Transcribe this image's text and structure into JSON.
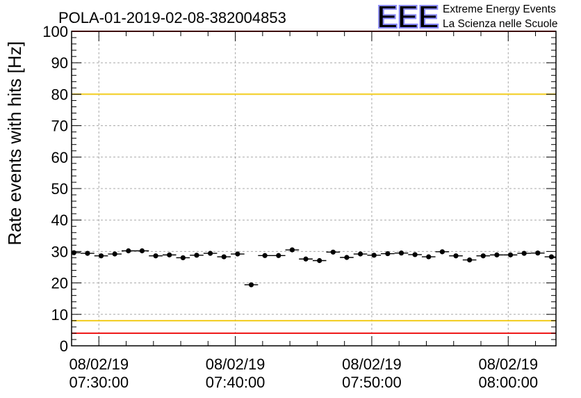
{
  "chart_data": {
    "type": "scatter",
    "title": "POLA-01-2019-02-08-382004853",
    "ylabel": "Rate events with hits [Hz]",
    "xlabel": "",
    "ylim": [
      0,
      100
    ],
    "grid": true,
    "yticks": [
      0,
      10,
      20,
      30,
      40,
      50,
      60,
      70,
      80,
      90,
      100
    ],
    "xticks": [
      {
        "t": "07:30:00",
        "date": "08/02/19",
        "time": "07:30:00"
      },
      {
        "t": "07:40:00",
        "date": "08/02/19",
        "time": "07:40:00"
      },
      {
        "t": "07:50:00",
        "date": "08/02/19",
        "time": "07:50:00"
      },
      {
        "t": "08:00:00",
        "date": "08/02/19",
        "time": "08:00:00"
      }
    ],
    "xrange": [
      "07:28:00",
      "08:03:30"
    ],
    "bin_width_minutes": 1,
    "reference_lines": [
      {
        "y": 100,
        "color": "#ee1111"
      },
      {
        "y": 80,
        "color": "#f2cc1a"
      },
      {
        "y": 8,
        "color": "#f2cc1a"
      },
      {
        "y": 4,
        "color": "#ee1111"
      }
    ],
    "series": [
      {
        "color": "#000000",
        "points": [
          {
            "t": "07:28:10",
            "y": 29.6
          },
          {
            "t": "07:29:10",
            "y": 29.4
          },
          {
            "t": "07:30:10",
            "y": 28.6
          },
          {
            "t": "07:31:10",
            "y": 29.2
          },
          {
            "t": "07:32:10",
            "y": 30.2
          },
          {
            "t": "07:33:10",
            "y": 30.2
          },
          {
            "t": "07:34:10",
            "y": 28.6
          },
          {
            "t": "07:35:10",
            "y": 28.9
          },
          {
            "t": "07:36:10",
            "y": 28.0
          },
          {
            "t": "07:37:10",
            "y": 28.8
          },
          {
            "t": "07:38:10",
            "y": 29.4
          },
          {
            "t": "07:39:10",
            "y": 28.3
          },
          {
            "t": "07:40:10",
            "y": 29.2
          },
          {
            "t": "07:41:10",
            "y": 19.4
          },
          {
            "t": "07:42:10",
            "y": 28.7
          },
          {
            "t": "07:43:10",
            "y": 28.7
          },
          {
            "t": "07:44:10",
            "y": 30.5
          },
          {
            "t": "07:45:10",
            "y": 27.6
          },
          {
            "t": "07:46:10",
            "y": 27.1
          },
          {
            "t": "07:47:10",
            "y": 29.8
          },
          {
            "t": "07:48:10",
            "y": 28.1
          },
          {
            "t": "07:49:10",
            "y": 29.2
          },
          {
            "t": "07:50:10",
            "y": 28.8
          },
          {
            "t": "07:51:10",
            "y": 29.3
          },
          {
            "t": "07:52:10",
            "y": 29.5
          },
          {
            "t": "07:53:10",
            "y": 29.0
          },
          {
            "t": "07:54:10",
            "y": 28.3
          },
          {
            "t": "07:55:10",
            "y": 29.9
          },
          {
            "t": "07:56:10",
            "y": 28.6
          },
          {
            "t": "07:57:10",
            "y": 27.3
          },
          {
            "t": "07:58:10",
            "y": 28.6
          },
          {
            "t": "07:59:10",
            "y": 28.9
          },
          {
            "t": "08:00:10",
            "y": 28.9
          },
          {
            "t": "08:01:10",
            "y": 29.4
          },
          {
            "t": "08:02:10",
            "y": 29.5
          },
          {
            "t": "08:03:10",
            "y": 28.3
          }
        ]
      }
    ]
  },
  "logo": {
    "letters": "EEE",
    "line1": "Extreme Energy Events",
    "line2": "La Scienza nelle Scuole",
    "color": "#1010ee"
  }
}
